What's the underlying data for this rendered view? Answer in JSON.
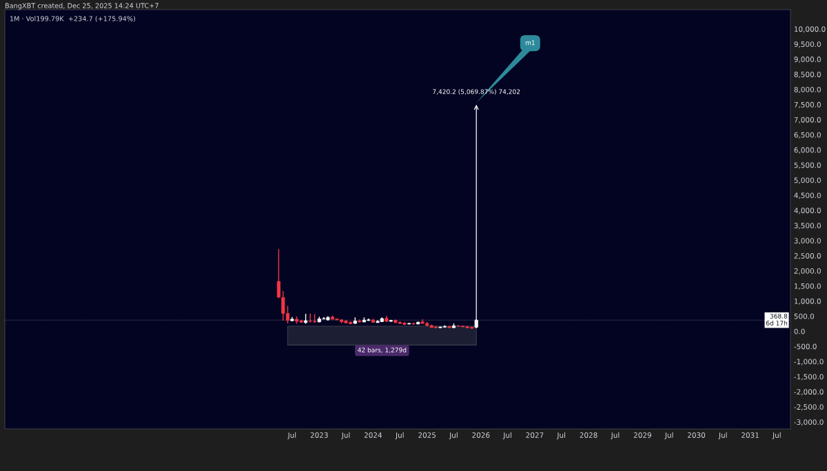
{
  "chart_data": {
    "type": "candlestick",
    "title": "1M · Vol199.79K  +234.7 (+175.94%)",
    "subtitle": "BangXBT created, Dec 25, 2025 14:24 UTC+7",
    "x": [
      "2022-04",
      "2022-05",
      "2022-06",
      "2022-07",
      "2022-08",
      "2022-09",
      "2022-10",
      "2022-11",
      "2022-12",
      "2023-01",
      "2023-02",
      "2023-03",
      "2023-04",
      "2023-05",
      "2023-06",
      "2023-07",
      "2023-08",
      "2023-09",
      "2023-10",
      "2023-11",
      "2023-12",
      "2024-01",
      "2024-02",
      "2024-03",
      "2024-04",
      "2024-05",
      "2024-06",
      "2024-07",
      "2024-08",
      "2024-09",
      "2024-10",
      "2024-11",
      "2024-12",
      "2025-01",
      "2025-02",
      "2025-03",
      "2025-04",
      "2025-05",
      "2025-06",
      "2025-07",
      "2025-08",
      "2025-09",
      "2025-10",
      "2025-11",
      "2025-12"
    ],
    "ohlc": [
      [
        1650,
        2720,
        1100,
        1130
      ],
      [
        1120,
        1330,
        360,
        590
      ],
      [
        590,
        840,
        260,
        360
      ],
      [
        350,
        470,
        330,
        400
      ],
      [
        400,
        490,
        250,
        330
      ],
      [
        350,
        380,
        290,
        300
      ],
      [
        290,
        580,
        250,
        350
      ],
      [
        340,
        590,
        290,
        330
      ],
      [
        330,
        570,
        280,
        310
      ],
      [
        310,
        480,
        300,
        410
      ],
      [
        410,
        470,
        390,
        420
      ],
      [
        380,
        500,
        350,
        460
      ],
      [
        470,
        520,
        390,
        400
      ],
      [
        410,
        420,
        370,
        380
      ],
      [
        380,
        390,
        270,
        320
      ],
      [
        340,
        370,
        260,
        280
      ],
      [
        300,
        320,
        230,
        250
      ],
      [
        260,
        460,
        250,
        340
      ],
      [
        340,
        390,
        290,
        310
      ],
      [
        310,
        460,
        300,
        370
      ],
      [
        360,
        420,
        340,
        380
      ],
      [
        370,
        420,
        280,
        300
      ],
      [
        290,
        370,
        280,
        330
      ],
      [
        320,
        460,
        310,
        420
      ],
      [
        430,
        510,
        300,
        330
      ],
      [
        330,
        380,
        320,
        360
      ],
      [
        360,
        390,
        270,
        290
      ],
      [
        300,
        320,
        240,
        260
      ],
      [
        270,
        310,
        210,
        230
      ],
      [
        240,
        280,
        230,
        260
      ],
      [
        260,
        280,
        220,
        240
      ],
      [
        240,
        320,
        230,
        300
      ],
      [
        310,
        400,
        250,
        260
      ],
      [
        260,
        310,
        180,
        190
      ],
      [
        190,
        220,
        110,
        130
      ],
      [
        140,
        180,
        100,
        120
      ],
      [
        120,
        160,
        100,
        140
      ],
      [
        140,
        200,
        120,
        160
      ],
      [
        160,
        180,
        110,
        120
      ],
      [
        120,
        260,
        110,
        180
      ],
      [
        180,
        200,
        150,
        170
      ],
      [
        170,
        190,
        140,
        150
      ],
      [
        150,
        180,
        100,
        120
      ],
      [
        130,
        150,
        80,
        100
      ],
      [
        133.4,
        400,
        100,
        368.8
      ]
    ],
    "colors": [
      "#f23645",
      "#f23645",
      "#f23645",
      "#ffffff",
      "#f23645",
      "#f23645",
      "#ffffff",
      "#f23645",
      "#f23645",
      "#ffffff",
      "#ffffff",
      "#ffffff",
      "#f23645",
      "#f23645",
      "#f23645",
      "#f23645",
      "#f23645",
      "#ffffff",
      "#f23645",
      "#ffffff",
      "#ffffff",
      "#f23645",
      "#ffffff",
      "#ffffff",
      "#f23645",
      "#ffffff",
      "#f23645",
      "#f23645",
      "#f23645",
      "#ffffff",
      "#f23645",
      "#ffffff",
      "#f23645",
      "#f23645",
      "#f23645",
      "#f23645",
      "#ffffff",
      "#ffffff",
      "#f23645",
      "#ffffff",
      "#f23645",
      "#f23645",
      "#f23645",
      "#f23645",
      "#ffffff"
    ],
    "xlim": [
      "2017-03",
      "2031-10"
    ],
    "xticks": [
      {
        "value": "2022-07",
        "label": "Jul"
      },
      {
        "value": "2023-01",
        "label": "2023"
      },
      {
        "value": "2023-07",
        "label": "Jul"
      },
      {
        "value": "2024-01",
        "label": "2024"
      },
      {
        "value": "2024-07",
        "label": "Jul"
      },
      {
        "value": "2025-01",
        "label": "2025"
      },
      {
        "value": "2025-07",
        "label": "Jul"
      },
      {
        "value": "2026-01",
        "label": "2026"
      },
      {
        "value": "2026-07",
        "label": "Jul"
      },
      {
        "value": "2027-01",
        "label": "2027"
      },
      {
        "value": "2027-07",
        "label": "Jul"
      },
      {
        "value": "2028-01",
        "label": "2028"
      },
      {
        "value": "2028-07",
        "label": "Jul"
      },
      {
        "value": "2029-01",
        "label": "2029"
      },
      {
        "value": "2029-07",
        "label": "Jul"
      },
      {
        "value": "2030-01",
        "label": "2030"
      },
      {
        "value": "2030-07",
        "label": "Jul"
      },
      {
        "value": "2031-01",
        "label": "2031"
      },
      {
        "value": "2031-07",
        "label": "Jul"
      }
    ],
    "ylim": [
      -3230,
      10640
    ],
    "yticks": [
      {
        "value": 10000,
        "label": "10,000.0"
      },
      {
        "value": 9500,
        "label": "9,500.0"
      },
      {
        "value": 9000,
        "label": "9,000.0"
      },
      {
        "value": 8500,
        "label": "8,500.0"
      },
      {
        "value": 8000,
        "label": "8,000.0"
      },
      {
        "value": 7500,
        "label": "7,500.0"
      },
      {
        "value": 7000,
        "label": "7,000.0"
      },
      {
        "value": 6500,
        "label": "6,500.0"
      },
      {
        "value": 6000,
        "label": "6,000.0"
      },
      {
        "value": 5500,
        "label": "5,500.0"
      },
      {
        "value": 5000,
        "label": "5,000.0"
      },
      {
        "value": 4500,
        "label": "4,500.0"
      },
      {
        "value": 4000,
        "label": "4,000.0"
      },
      {
        "value": 3500,
        "label": "3,500.0"
      },
      {
        "value": 3000,
        "label": "3,000.0"
      },
      {
        "value": 2500,
        "label": "2,500.0"
      },
      {
        "value": 2000,
        "label": "2,000.0"
      },
      {
        "value": 1500,
        "label": "1,500.0"
      },
      {
        "value": 1000,
        "label": "1,000.0"
      },
      {
        "value": 500,
        "label": "500.0"
      },
      {
        "value": 0,
        "label": "0.0"
      },
      {
        "value": -500,
        "label": "-500.0"
      },
      {
        "value": -1000,
        "label": "-1,000.0"
      },
      {
        "value": -1500,
        "label": "-1,500.0"
      },
      {
        "value": -2000,
        "label": "-2,000.0"
      },
      {
        "value": -2500,
        "label": "-2,500.0"
      },
      {
        "value": -3000,
        "label": "-3,000.0"
      }
    ],
    "bands": [
      {
        "axis": "x",
        "from": "2022-06",
        "to": "2025-12",
        "label": "42 bars, 1,279d",
        "color": "#1c1f33"
      }
    ],
    "ref_lines": [
      {
        "axis": "y",
        "value": 368.8,
        "label": "368.8\n6d 17h",
        "color": "#ffffff",
        "line_style": "dotted"
      }
    ],
    "annotations": [
      "7,420.2 (5,069.87%) 74,202",
      "m1"
    ],
    "grid": false
  }
}
